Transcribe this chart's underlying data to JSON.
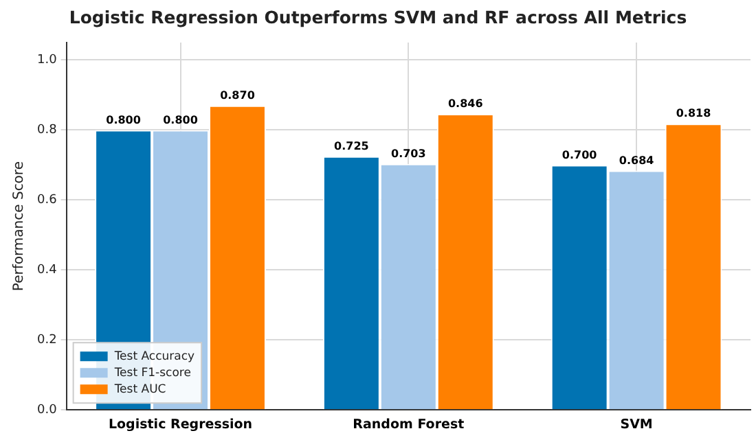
{
  "chart_data": {
    "type": "bar",
    "title": "Logistic Regression Outperforms SVM and RF across All Metrics",
    "ylabel": "Performance Score",
    "categories": [
      "Logistic Regression",
      "Random Forest",
      "SVM"
    ],
    "series": [
      {
        "name": "Test Accuracy",
        "color": "#0173b2",
        "values": [
          0.8,
          0.725,
          0.7
        ],
        "value_labels": [
          "0.800",
          "0.725",
          "0.700"
        ]
      },
      {
        "name": "Test F1-score",
        "color": "#a5c8ea",
        "values": [
          0.8,
          0.703,
          0.684
        ],
        "value_labels": [
          "0.800",
          "0.703",
          "0.684"
        ]
      },
      {
        "name": "Test AUC",
        "color": "#ff8000",
        "values": [
          0.87,
          0.846,
          0.818
        ],
        "value_labels": [
          "0.870",
          "0.846",
          "0.818"
        ]
      }
    ],
    "ylim": [
      0,
      1.05
    ],
    "yticks": [
      {
        "value": 0,
        "label": "0.0"
      },
      0.2,
      0.4,
      0.6,
      0.8,
      {
        "value": 1,
        "label": "1.0"
      }
    ],
    "grid": true,
    "legend": "bottom left"
  }
}
